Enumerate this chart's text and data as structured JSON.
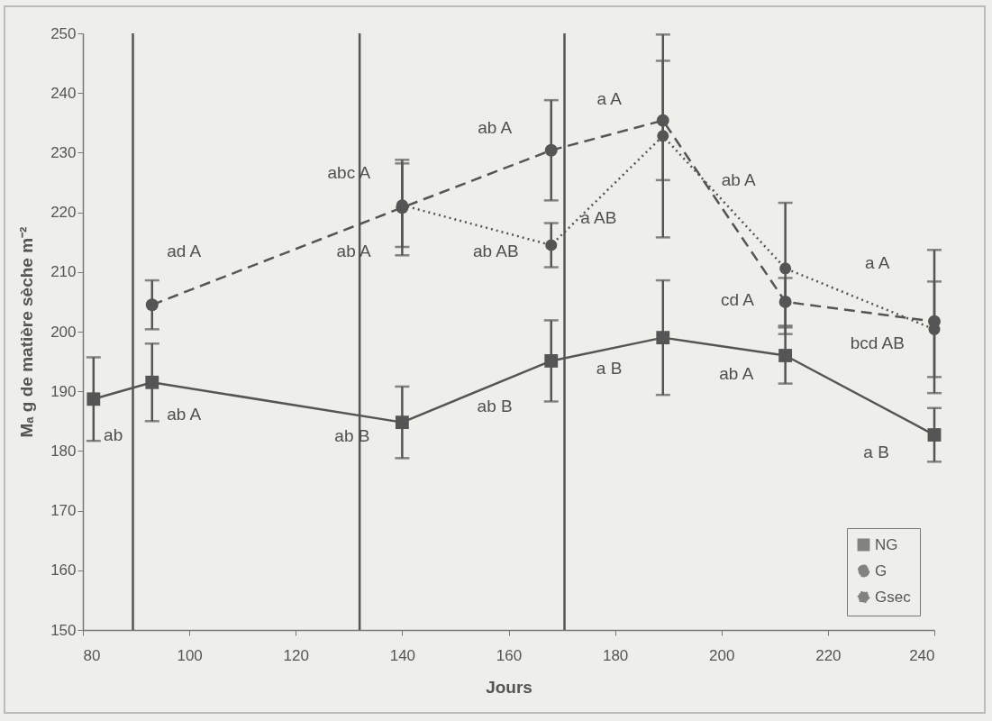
{
  "chart_data": {
    "type": "line",
    "xlabel": "Jours",
    "ylabel": "Mₐ g de matière sèche m⁻²",
    "xlim": [
      80,
      240
    ],
    "xticks": [
      80,
      100,
      120,
      140,
      160,
      180,
      200,
      220,
      240
    ],
    "ylim": [
      150,
      250
    ],
    "yticks": [
      150,
      160,
      170,
      180,
      190,
      200,
      210,
      220,
      230,
      240,
      250
    ],
    "grid": false,
    "legend": "bottom right",
    "series": [
      {
        "name": "NG",
        "color": "#555555",
        "marker": "square",
        "line_style": "solid",
        "x": [
          82,
          93,
          140,
          168,
          189,
          212,
          240
        ],
        "values": [
          188.7,
          191.5,
          184.8,
          195.1,
          199.0,
          196.0,
          182.7
        ],
        "errors": [
          7,
          6.5,
          6,
          6.8,
          9.6,
          4.7,
          4.5
        ]
      },
      {
        "name": "G",
        "color": "#555555",
        "marker": "circle",
        "line_style": "dashed",
        "x": [
          93,
          140,
          168,
          189,
          212,
          240
        ],
        "values": [
          204.5,
          220.8,
          230.4,
          235.4,
          205.0,
          201.7
        ],
        "errors": [
          4.1,
          8,
          8.4,
          10,
          4,
          12
        ]
      },
      {
        "name": "Gsec",
        "color": "#555555",
        "marker": "circle",
        "line_style": "dotted",
        "x": [
          140,
          168,
          189,
          212,
          240
        ],
        "values": [
          221.2,
          214.5,
          232.8,
          210.6,
          200.4
        ],
        "errors": [
          7,
          3.7,
          17,
          11,
          8
        ]
      }
    ],
    "ref_lines": [
      {
        "axis": "x",
        "value": 89.4
      },
      {
        "axis": "x",
        "value": 132
      },
      {
        "axis": "x",
        "value": 170.5
      }
    ],
    "annotations": [
      "ab",
      "ab A",
      "ab B",
      "ab B",
      "a B",
      "ab A",
      "a B",
      "ad A",
      "abc A",
      "ab A",
      "a A",
      "cd A",
      "bcd AB",
      "ab A",
      "ab AB",
      "a AB",
      "ab A",
      "a A"
    ]
  }
}
